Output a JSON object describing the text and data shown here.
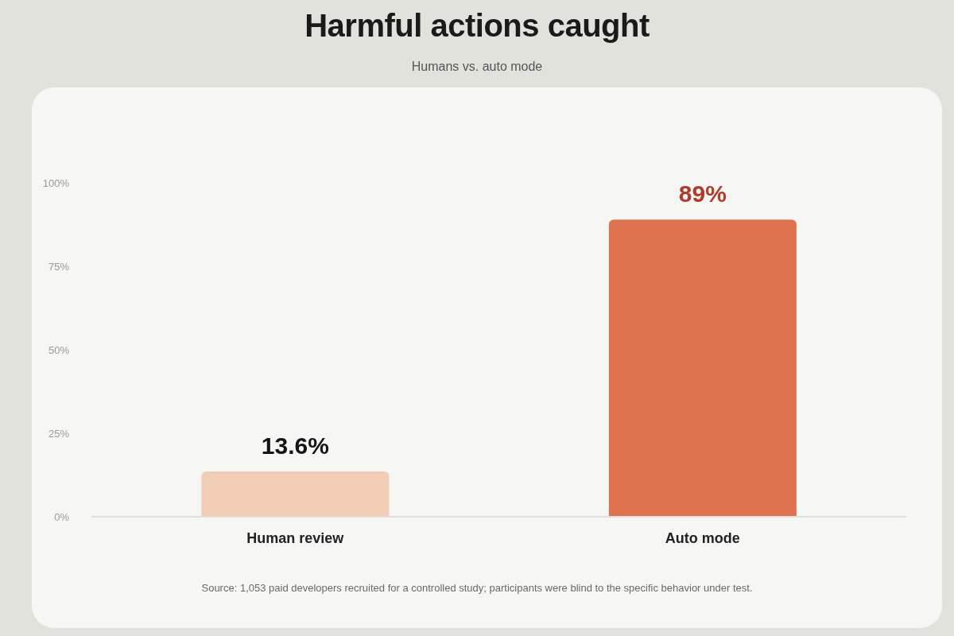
{
  "chart_data": {
    "type": "bar",
    "title": "Harmful actions caught",
    "subtitle": "Humans vs. auto mode",
    "categories": [
      "Human review",
      "Auto mode"
    ],
    "values": [
      13.6,
      89
    ],
    "colors": [
      "#f2cdb6",
      "#e0734f"
    ],
    "value_labels": [
      "13.6%",
      "89%"
    ],
    "ylim": [
      0,
      100
    ],
    "yticks": [
      {
        "value": 0,
        "label": "0%"
      },
      {
        "value": 25,
        "label": "25%"
      },
      {
        "value": 50,
        "label": "50%"
      },
      {
        "value": 75,
        "label": "75%"
      },
      {
        "value": 100,
        "label": "100%"
      }
    ],
    "annotations": [
      "Source: 1,053 paid developers recruited for a controlled study; participants were blind to the specific behavior under test."
    ]
  }
}
